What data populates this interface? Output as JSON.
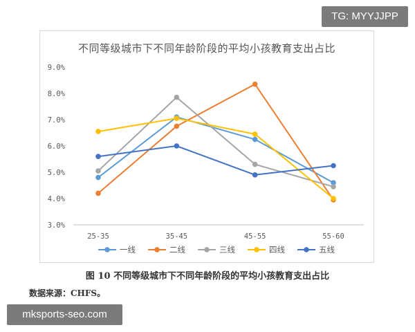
{
  "watermarks": {
    "tg": "TG: MYYJJPP",
    "site": "mksports-seo.com"
  },
  "caption": "图 10  不同等级城市下不同年龄阶段的平均小孩教育支出占比",
  "source": "数据来源：CHFS。",
  "chart_data": {
    "type": "line",
    "title": "不同等级城市下不同年龄阶段的平均小孩教育支出占比",
    "categories": [
      "25-35",
      "35-45",
      "45-55",
      "55-60"
    ],
    "y_ticks": [
      "3.0%",
      "4.0%",
      "5.0%",
      "6.0%",
      "7.0%",
      "8.0%",
      "9.0%"
    ],
    "ylim": [
      3.0,
      9.0
    ],
    "grid": false,
    "legend_position": "bottom",
    "series": [
      {
        "name": "一线",
        "color": "#5b9bd5",
        "values": [
          4.8,
          7.1,
          6.25,
          4.6
        ]
      },
      {
        "name": "二线",
        "color": "#ed7d31",
        "values": [
          4.2,
          6.75,
          8.35,
          3.95
        ]
      },
      {
        "name": "三线",
        "color": "#a5a5a5",
        "values": [
          5.05,
          7.85,
          5.3,
          4.45
        ]
      },
      {
        "name": "四线",
        "color": "#ffc000",
        "values": [
          6.55,
          7.05,
          6.45,
          4.0
        ]
      },
      {
        "name": "五线",
        "color": "#4472c4",
        "values": [
          5.6,
          6.0,
          4.9,
          5.25
        ]
      }
    ]
  }
}
